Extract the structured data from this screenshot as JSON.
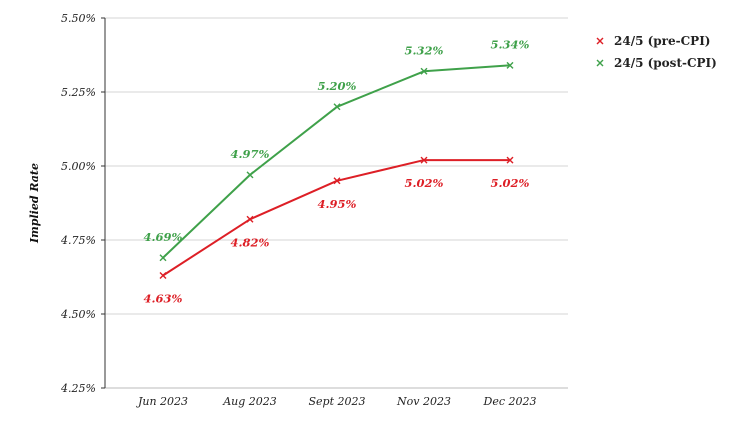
{
  "chart_data": {
    "type": "line",
    "categories": [
      "Jun 2023",
      "Aug 2023",
      "Sept 2023",
      "Nov 2023",
      "Dec 2023"
    ],
    "ylabel": "Implied Rate",
    "ylim": [
      4.25,
      5.5
    ],
    "yticks": [
      4.25,
      4.5,
      4.75,
      5.0,
      5.25,
      5.5
    ],
    "ytick_labels": [
      "4.25%",
      "4.50%",
      "4.75%",
      "5.00%",
      "5.25%",
      "5.50%"
    ],
    "grid": "horizontal",
    "legend_position": "top-right",
    "series": [
      {
        "name": "24/5 (pre-CPI)",
        "color": "#dd1f26",
        "values": [
          4.63,
          4.82,
          4.95,
          5.02,
          5.02
        ],
        "labels": [
          "4.63%",
          "4.82%",
          "4.95%",
          "5.02%",
          "5.02%"
        ],
        "label_position": "below"
      },
      {
        "name": "24/5 (post-CPI)",
        "color": "#3fa14a",
        "values": [
          4.69,
          4.97,
          5.2,
          5.32,
          5.34
        ],
        "labels": [
          "4.69%",
          "4.97%",
          "5.20%",
          "5.32%",
          "5.34%"
        ],
        "label_position": "above"
      }
    ]
  }
}
